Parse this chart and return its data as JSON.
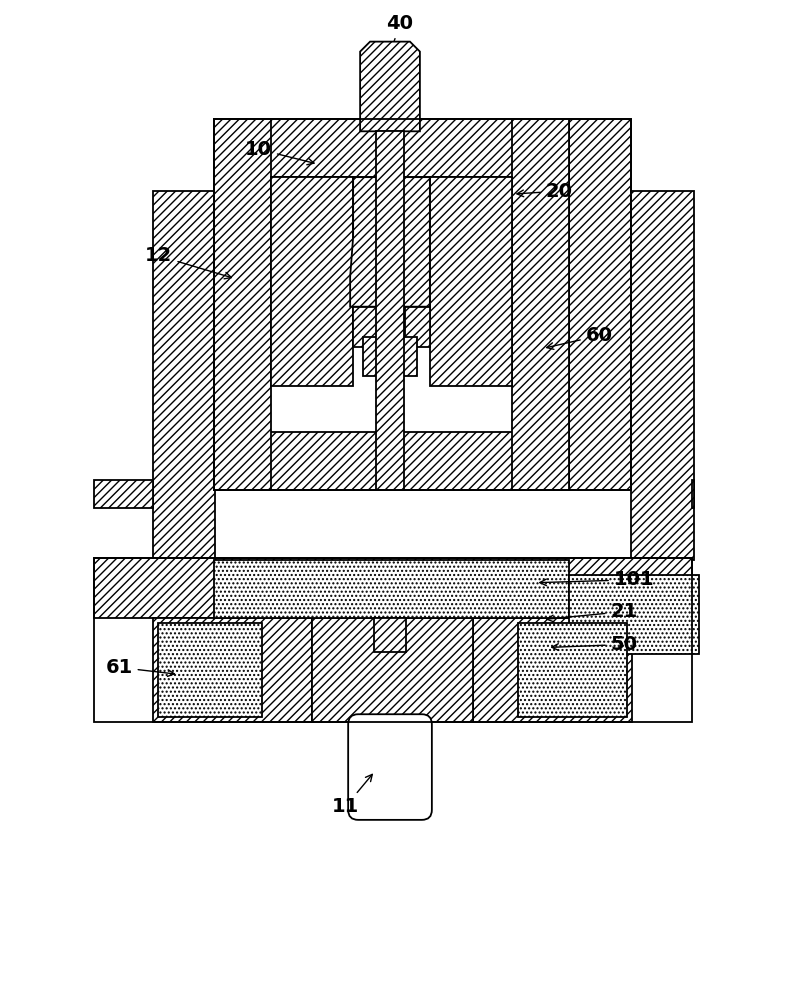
{
  "bg_color": "#ffffff",
  "line_color": "#000000",
  "lw": 1.3,
  "hatch_dense": "////",
  "hatch_medium": "///",
  "hatch_sparse": "//",
  "dot_hatch": "....",
  "labels": {
    "40": [
      400,
      22,
      390,
      52
    ],
    "10": [
      258,
      148,
      318,
      163
    ],
    "12": [
      158,
      255,
      235,
      278
    ],
    "20": [
      560,
      190,
      513,
      193
    ],
    "60": [
      600,
      335,
      543,
      348
    ],
    "101": [
      635,
      580,
      536,
      583
    ],
    "21": [
      625,
      612,
      543,
      620
    ],
    "50": [
      625,
      645,
      548,
      648
    ],
    "61": [
      118,
      668,
      178,
      675
    ],
    "11": [
      345,
      808,
      375,
      772
    ]
  }
}
